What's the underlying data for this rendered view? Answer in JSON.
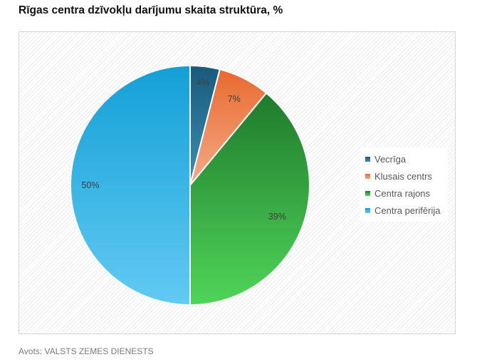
{
  "source": "Avots: VALSTS ZEMES DIENESTS",
  "chart_data": {
    "type": "pie",
    "title": "Rīgas centra dzīvokļu darījumu skaita struktūra, %",
    "legend_position": "right",
    "categories": [
      "Vecrīga",
      "Klusais centrs",
      "Centra rajons",
      "Centra perifērija"
    ],
    "values": [
      4,
      7,
      39,
      50
    ],
    "data_labels": [
      "4%",
      "7%",
      "39%",
      "50%"
    ],
    "colors": [
      {
        "light": "#3c8fb3",
        "dark": "#1a5a7c"
      },
      {
        "light": "#f4ab89",
        "dark": "#e8692e"
      },
      {
        "light": "#4fd559",
        "dark": "#1f7a2c"
      },
      {
        "light": "#62caf3",
        "dark": "#13a0d6"
      }
    ],
    "label_color": "#404040"
  }
}
